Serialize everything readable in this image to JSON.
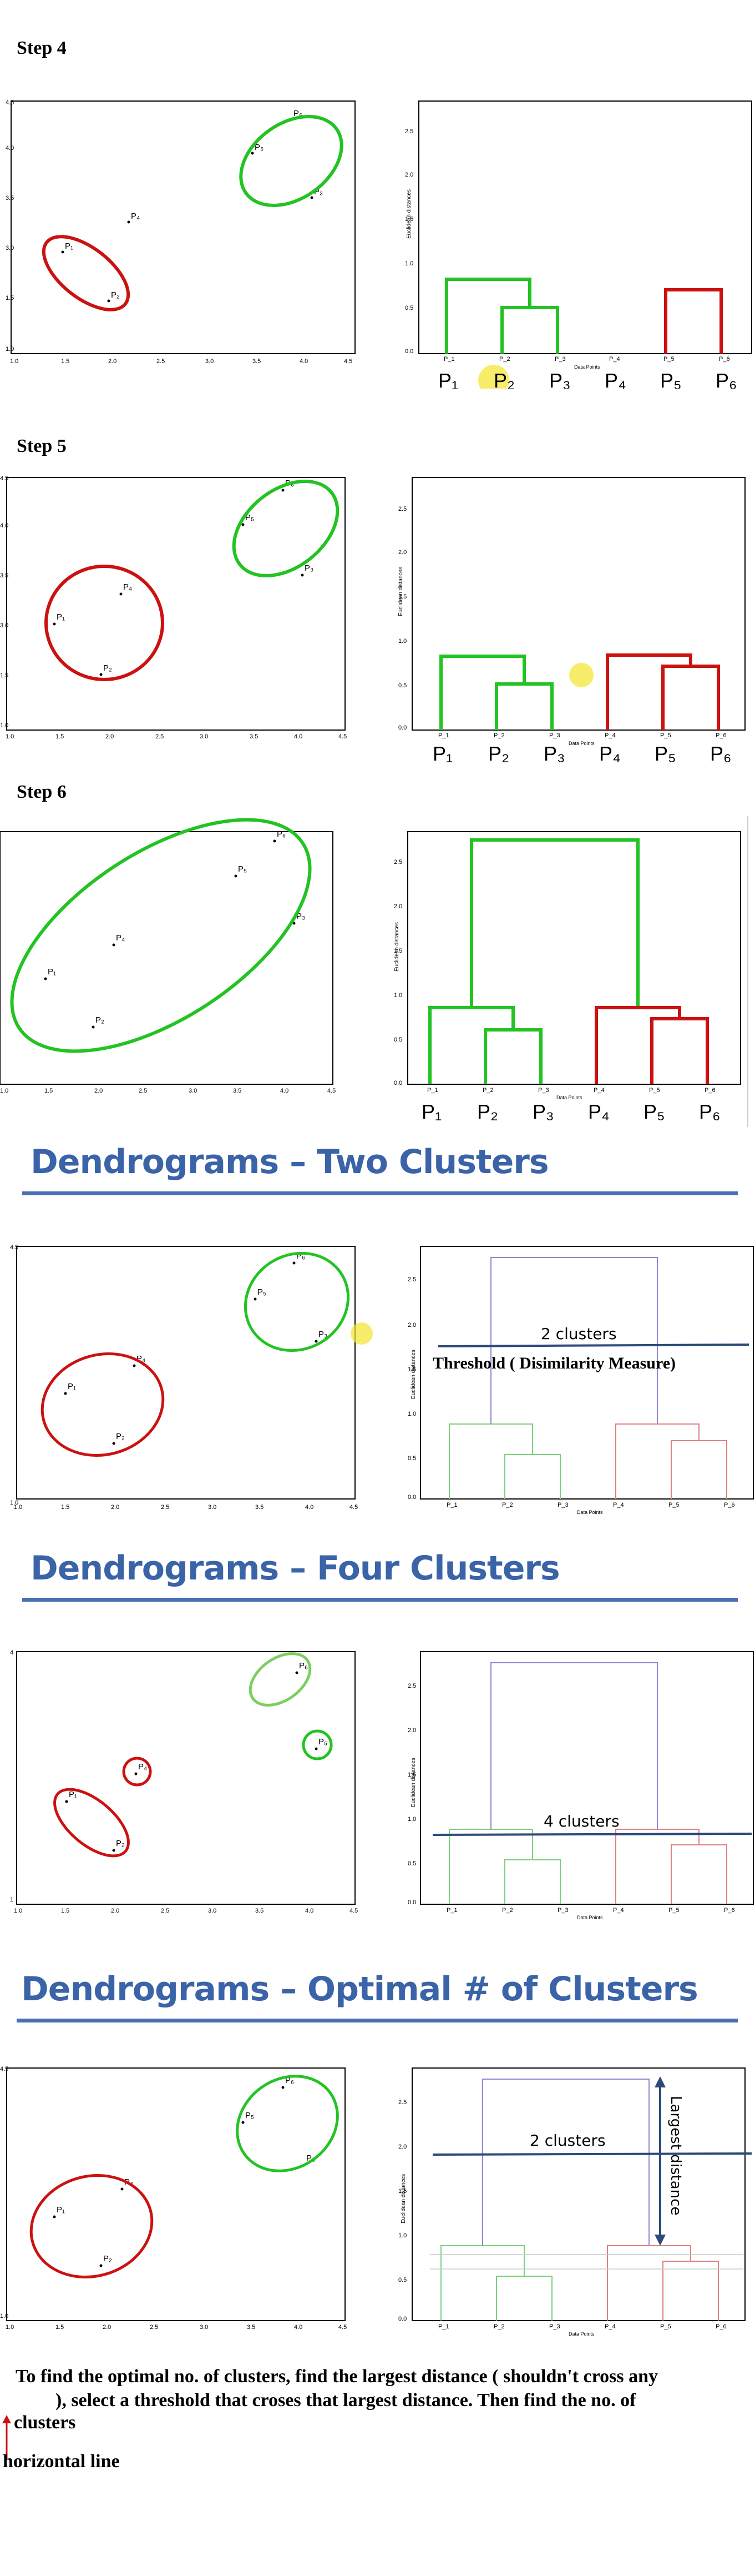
{
  "steps": [
    {
      "title": "Step 4",
      "figure": "fig-step4"
    },
    {
      "title": "Step 5",
      "figure": "fig-step5"
    },
    {
      "title": "Step 6",
      "figure": "fig-step6"
    }
  ],
  "banners": {
    "two": "Dendrograms – Two Clusters",
    "four": "Dendrograms – Four Clusters",
    "optimal": "Dendrograms – Optimal # of Clusters"
  },
  "colors": {
    "green": "#22c322",
    "red": "#cc1111",
    "banner": "#3b64a8",
    "purple": "#8a8ad0",
    "highlight": "#f5e62b"
  },
  "point_labels": [
    "P1",
    "P2",
    "P3",
    "P4",
    "P5",
    "P6"
  ],
  "big_labels": [
    "P₁",
    "P₂",
    "P₃",
    "P₄",
    "P₅",
    "P₆"
  ],
  "axis": {
    "y_title": "Euclidean distances",
    "x_title": "Data Points"
  },
  "annotations": {
    "two_clusters": "2 clusters",
    "threshold": "Threshold ( Disimilarity Measure)",
    "four_clusters": "4 clusters",
    "two_clusters_optimal": "2 clusters",
    "largest_distance": "Largest distance"
  },
  "notes": {
    "line1": "To find the optimal no. of clusters, find the largest distance ( shouldn't  cross any",
    "line2": "), select a threshold that croses that largest distance. Then   find the no. of",
    "line3": "clusters",
    "line4": "horizontal line"
  },
  "chart_data": [
    {
      "type": "scatter",
      "xlim": [
        1.0,
        5.0
      ],
      "ylim": [
        1.0,
        4.5
      ],
      "xticks": [
        "1.0",
        "1.5",
        "2.0",
        "2.5",
        "3.0",
        "3.5",
        "4.0",
        "4.5",
        "5.0"
      ],
      "yticks": [
        "1.0",
        "1.5",
        "2.0",
        "2.5",
        "3.0",
        "3.5",
        "4.0",
        "4.5"
      ],
      "points": [
        {
          "label": "P1",
          "x": 2.0,
          "y": 3.0
        },
        {
          "label": "P2",
          "x": 2.5,
          "y": 2.0
        },
        {
          "label": "P3",
          "x": 4.5,
          "y": 3.2
        },
        {
          "label": "P4",
          "x": 2.7,
          "y": 3.2
        },
        {
          "label": "P5",
          "x": 4.0,
          "y": 3.9
        },
        {
          "label": "P6",
          "x": 4.5,
          "y": 4.3
        }
      ]
    },
    {
      "type": "line",
      "title": "dendrogram",
      "categories": [
        "P1",
        "P2",
        "P3",
        "P4",
        "P5",
        "P6"
      ],
      "ylim": [
        0,
        3.0
      ],
      "yticks": [
        "0.0",
        "0.5",
        "1.0",
        "1.5",
        "2.0",
        "2.5"
      ],
      "merges": [
        {
          "left": "P1",
          "right": "P2+P3",
          "height": 0.82
        },
        {
          "left": "P2",
          "right": "P3",
          "height": 0.5
        },
        {
          "left": "P5",
          "right": "P6",
          "height": 0.72
        },
        {
          "left": "P4",
          "right": "P5+P6",
          "height": 0.82
        },
        {
          "left": "P1..P3",
          "right": "P4..P6",
          "height": 2.75
        }
      ]
    }
  ]
}
